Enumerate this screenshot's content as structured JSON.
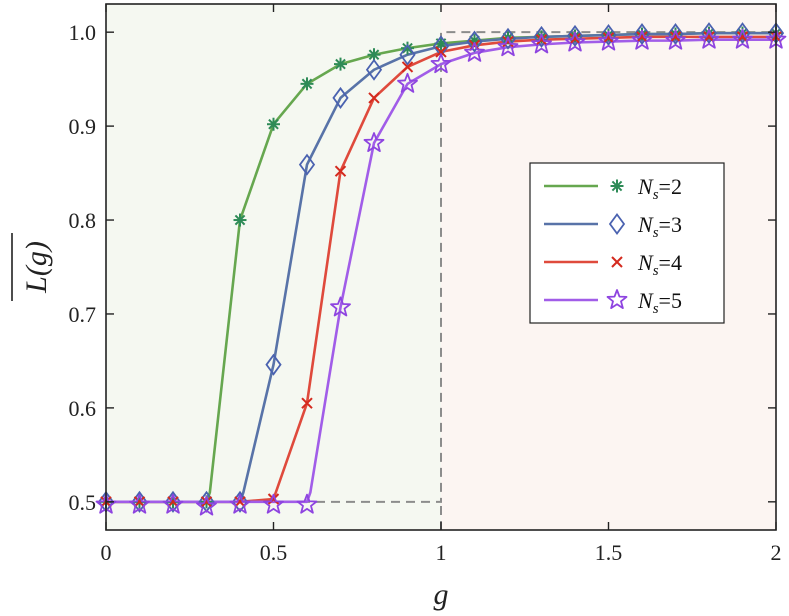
{
  "chart_data": {
    "type": "line",
    "title": "",
    "xlabel": "g",
    "ylabel_base": "L(g)",
    "ylabel_overline": true,
    "xlim": [
      0,
      2
    ],
    "ylim": [
      0.47,
      1.03
    ],
    "xticks": [
      0,
      0.5,
      1,
      1.5,
      2
    ],
    "xtick_labels": [
      "0",
      "0.5",
      "1",
      "1.5",
      "2"
    ],
    "yticks": [
      0.5,
      0.6,
      0.7,
      0.8,
      0.9,
      1.0
    ],
    "ytick_labels": [
      "0.5",
      "0.6",
      "0.7",
      "0.8",
      "0.9",
      "1.0"
    ],
    "grid": false,
    "legend_position": "center-right",
    "background_regions": [
      {
        "x_from": 0,
        "x_to": 1,
        "color": "#f5f8f1"
      },
      {
        "x_from": 1,
        "x_to": 2,
        "color": "#fcf5f2"
      }
    ],
    "reference_lines": [
      {
        "points": [
          [
            0,
            0.5
          ],
          [
            1,
            0.5
          ],
          [
            1,
            1.0
          ],
          [
            2,
            1.0
          ]
        ],
        "color": "#8c8c8c",
        "style": "dashed"
      },
      {
        "points": [
          [
            1,
            0.47
          ],
          [
            1,
            0.5
          ]
        ],
        "color": "#8c8c8c",
        "style": "dashed"
      }
    ],
    "series": [
      {
        "label_base": "N",
        "label_sub": "s",
        "label_value": "2",
        "line_color": "#66a74f",
        "marker_color": "#2e8b57",
        "marker": "asterisk",
        "line_x": [
          0,
          0.1,
          0.2,
          0.3,
          0.31,
          0.4,
          0.5,
          0.6,
          0.7,
          0.8,
          0.9,
          1.0,
          1.1,
          1.2,
          1.3,
          1.4,
          1.5,
          1.6,
          1.7,
          1.8,
          1.9,
          2.0
        ],
        "line_y": [
          0.5,
          0.5,
          0.5,
          0.5,
          0.51,
          0.8,
          0.902,
          0.945,
          0.966,
          0.976,
          0.983,
          0.988,
          0.991,
          0.994,
          0.995,
          0.996,
          0.997,
          0.998,
          0.998,
          0.999,
          0.999,
          0.999
        ],
        "marker_x": [
          0,
          0.1,
          0.2,
          0.3,
          0.4,
          0.5,
          0.6,
          0.7,
          0.8,
          0.9,
          1.0,
          1.1,
          1.2,
          1.3,
          1.4,
          1.5,
          1.6,
          1.7,
          1.8,
          1.9,
          2.0
        ],
        "marker_y": [
          0.5,
          0.5,
          0.5,
          0.5,
          0.8,
          0.902,
          0.945,
          0.966,
          0.976,
          0.983,
          0.988,
          0.991,
          0.994,
          0.995,
          0.996,
          0.997,
          0.998,
          0.998,
          0.999,
          0.999,
          0.999
        ]
      },
      {
        "label_base": "N",
        "label_sub": "s",
        "label_value": "3",
        "line_color": "#5873a8",
        "marker_color": "#4a62b0",
        "marker": "diamond",
        "line_x": [
          0,
          0.1,
          0.2,
          0.3,
          0.4,
          0.41,
          0.5,
          0.6,
          0.7,
          0.8,
          0.9,
          1.0,
          1.1,
          1.2,
          1.3,
          1.4,
          1.5,
          1.6,
          1.7,
          1.8,
          1.9,
          2.0
        ],
        "line_y": [
          0.5,
          0.5,
          0.5,
          0.5,
          0.5,
          0.51,
          0.646,
          0.859,
          0.93,
          0.96,
          0.976,
          0.985,
          0.99,
          0.993,
          0.995,
          0.996,
          0.997,
          0.998,
          0.998,
          0.999,
          0.999,
          0.999
        ],
        "marker_x": [
          0,
          0.1,
          0.2,
          0.3,
          0.4,
          0.5,
          0.6,
          0.7,
          0.8,
          0.9,
          1.0,
          1.1,
          1.2,
          1.3,
          1.4,
          1.5,
          1.6,
          1.7,
          1.8,
          1.9,
          2.0
        ],
        "marker_y": [
          0.5,
          0.5,
          0.5,
          0.5,
          0.5,
          0.646,
          0.859,
          0.93,
          0.96,
          0.976,
          0.985,
          0.99,
          0.993,
          0.995,
          0.996,
          0.997,
          0.998,
          0.998,
          0.999,
          0.999,
          0.999
        ]
      },
      {
        "label_base": "N",
        "label_sub": "s",
        "label_value": "4",
        "line_color": "#df4a3c",
        "marker_color": "#d42a1e",
        "marker": "cross",
        "line_x": [
          0,
          0.1,
          0.2,
          0.3,
          0.4,
          0.5,
          0.6,
          0.7,
          0.8,
          0.9,
          1.0,
          1.1,
          1.2,
          1.3,
          1.4,
          1.5,
          1.6,
          1.7,
          1.8,
          1.9,
          2.0
        ],
        "line_y": [
          0.5,
          0.5,
          0.5,
          0.5,
          0.5,
          0.503,
          0.605,
          0.852,
          0.93,
          0.963,
          0.979,
          0.986,
          0.99,
          0.992,
          0.993,
          0.994,
          0.995,
          0.995,
          0.995,
          0.995,
          0.995
        ],
        "marker_x": [
          0,
          0.1,
          0.2,
          0.3,
          0.4,
          0.5,
          0.6,
          0.7,
          0.8,
          0.9,
          1.0,
          1.1,
          1.2,
          1.3,
          1.4,
          1.5,
          1.6,
          1.7,
          1.8,
          1.9,
          2.0
        ],
        "marker_y": [
          0.5,
          0.5,
          0.5,
          0.5,
          0.5,
          0.503,
          0.605,
          0.852,
          0.93,
          0.963,
          0.979,
          0.986,
          0.99,
          0.992,
          0.993,
          0.994,
          0.995,
          0.995,
          0.995,
          0.995,
          0.995
        ]
      },
      {
        "label_base": "N",
        "label_sub": "s",
        "label_value": "5",
        "line_color": "#a15de8",
        "marker_color": "#8e44e0",
        "marker": "star",
        "line_x": [
          0,
          0.1,
          0.2,
          0.3,
          0.4,
          0.5,
          0.6,
          0.61,
          0.7,
          0.8,
          0.9,
          1.0,
          1.1,
          1.2,
          1.3,
          1.4,
          1.5,
          1.6,
          1.7,
          1.8,
          1.9,
          2.0
        ],
        "line_y": [
          0.5,
          0.5,
          0.5,
          0.5,
          0.5,
          0.5,
          0.5,
          0.51,
          0.707,
          0.882,
          0.945,
          0.966,
          0.978,
          0.984,
          0.987,
          0.989,
          0.99,
          0.991,
          0.991,
          0.992,
          0.992,
          0.992
        ],
        "marker_x": [
          0,
          0.1,
          0.2,
          0.3,
          0.4,
          0.5,
          0.6,
          0.7,
          0.8,
          0.9,
          1.0,
          1.1,
          1.2,
          1.3,
          1.4,
          1.5,
          1.6,
          1.7,
          1.8,
          1.9,
          2.0
        ],
        "marker_y": [
          0.497,
          0.497,
          0.497,
          0.495,
          0.497,
          0.497,
          0.497,
          0.707,
          0.882,
          0.945,
          0.966,
          0.978,
          0.984,
          0.987,
          0.989,
          0.99,
          0.991,
          0.991,
          0.992,
          0.992,
          0.992
        ]
      }
    ]
  }
}
